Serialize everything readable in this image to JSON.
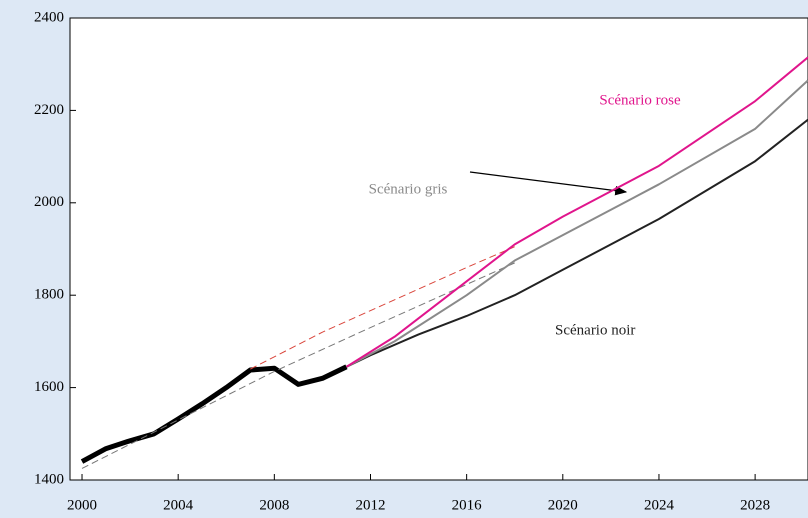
{
  "chart_data": {
    "type": "line",
    "xlim": [
      1999.5,
      2030.2
    ],
    "xticks": [
      2000,
      2004,
      2008,
      2012,
      2016,
      2020,
      2024,
      2028
    ],
    "ylim": [
      1400,
      2400
    ],
    "yticks": [
      1400,
      1600,
      1800,
      2000,
      2200,
      2400
    ],
    "series": [
      {
        "color": "#000000",
        "width": 5,
        "x": [
          2000,
          2001,
          2002,
          2003,
          2004,
          2005,
          2006,
          2007,
          2008,
          2009,
          2010,
          2011
        ],
        "values": [
          1440,
          1468,
          1485,
          1500,
          1532,
          1565,
          1600,
          1638,
          1642,
          1607,
          1620,
          1645
        ]
      },
      {
        "color": "#d9443a",
        "dashed": true,
        "width": 1,
        "x": [
          2007,
          2010,
          2013,
          2016,
          2018
        ],
        "values": [
          1640,
          1720,
          1790,
          1860,
          1905
        ]
      },
      {
        "color": "#777777",
        "dashed": true,
        "width": 1,
        "x": [
          2000,
          2004,
          2008,
          2012,
          2015,
          2018
        ],
        "values": [
          1425,
          1530,
          1635,
          1730,
          1800,
          1870
        ]
      },
      {
        "name": "Scénario noir",
        "color": "#222222",
        "width": 2,
        "x": [
          2011,
          2012,
          2014,
          2016,
          2018,
          2020,
          2024,
          2028,
          2030.2
        ],
        "values": [
          1645,
          1670,
          1715,
          1755,
          1800,
          1855,
          1965,
          2090,
          2180
        ]
      },
      {
        "name": "Scénario gris",
        "color": "#8a8a8a",
        "width": 2,
        "x": [
          2011,
          2013,
          2016,
          2018,
          2020,
          2024,
          2028,
          2030.2
        ],
        "values": [
          1645,
          1700,
          1800,
          1875,
          1930,
          2040,
          2160,
          2265
        ]
      },
      {
        "name": "Scénario rose",
        "color": "#e0158c",
        "width": 2,
        "x": [
          2011,
          2013,
          2016,
          2018,
          2020,
          2024,
          2028,
          2030.2
        ],
        "values": [
          1645,
          1710,
          1830,
          1910,
          1970,
          2080,
          2220,
          2315
        ]
      }
    ]
  }
}
